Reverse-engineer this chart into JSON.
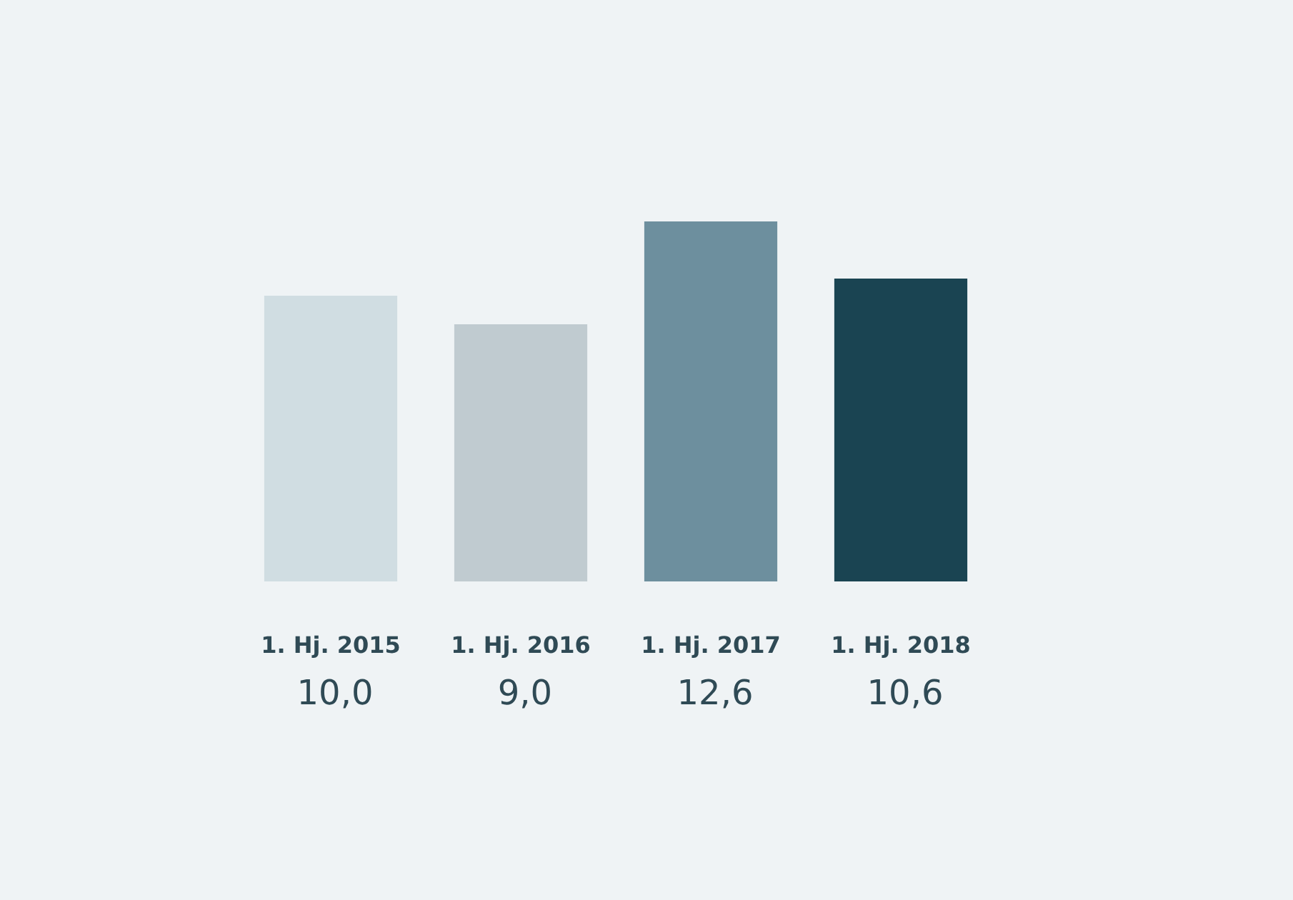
{
  "chart_data": {
    "type": "bar",
    "categories": [
      "1. Hj. 2015",
      "1. Hj. 2016",
      "1. Hj. 2017",
      "1. Hj. 2018"
    ],
    "values": [
      10.0,
      9.0,
      12.6,
      10.6
    ],
    "colors": [
      "#d0dde2",
      "#c0cbd0",
      "#6d8f9e",
      "#1a4452"
    ],
    "value_labels": [
      "10,0",
      "9,0",
      "12,6",
      "10,6"
    ]
  }
}
